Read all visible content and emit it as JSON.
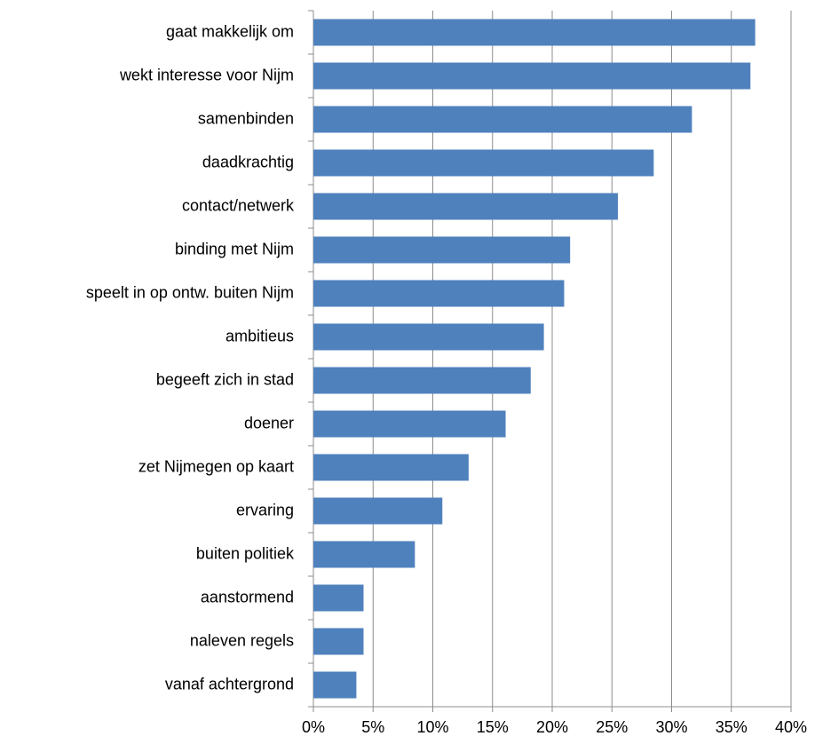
{
  "chart_data": {
    "type": "bar",
    "orientation": "horizontal",
    "categories": [
      "gaat makkelijk om",
      "wekt interesse voor Nijm",
      "samenbinden",
      "daadkrachtig",
      "contact/netwerk",
      "binding met Nijm",
      "speelt in op ontw. buiten Nijm",
      "ambitieus",
      "begeeft zich in stad",
      "doener",
      "zet Nijmegen op kaart",
      "ervaring",
      "buiten politiek",
      "aanstormend",
      "naleven regels",
      "vanaf achtergrond"
    ],
    "values": [
      37.0,
      36.6,
      31.7,
      28.5,
      25.5,
      21.5,
      21.0,
      19.3,
      18.2,
      16.1,
      13.0,
      10.8,
      8.5,
      4.2,
      4.2,
      3.6
    ],
    "color": "#4f81bd",
    "xlim": [
      0,
      40
    ],
    "xticks": [
      {
        "value": 0,
        "label": "0%"
      },
      {
        "value": 5,
        "label": "5%"
      },
      {
        "value": 10,
        "label": "10%"
      },
      {
        "value": 15,
        "label": "15%"
      },
      {
        "value": 20,
        "label": "20%"
      },
      {
        "value": 25,
        "label": "25%"
      },
      {
        "value": 30,
        "label": "30%"
      },
      {
        "value": 35,
        "label": "35%"
      },
      {
        "value": 40,
        "label": "40%"
      }
    ],
    "grid": true
  }
}
